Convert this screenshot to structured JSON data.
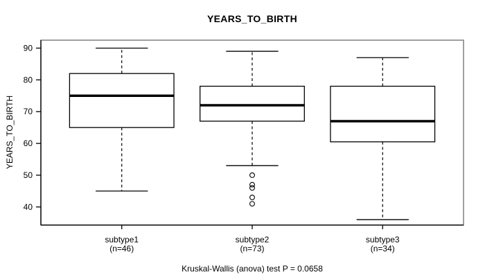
{
  "chart_data": {
    "type": "boxplot",
    "title": "YEARS_TO_BIRTH",
    "ylabel": "YEARS_TO_BIRTH",
    "footnote": "Kruskal-Wallis (anova) test P = 0.0658",
    "ylim": [
      34.3,
      92.5
    ],
    "yticks": [
      40,
      50,
      60,
      70,
      80,
      90
    ],
    "grid": false,
    "legend": "none",
    "groups": [
      {
        "label": "subtype1",
        "sublabel": "(n=46)",
        "n": 46,
        "whisker_low": 45,
        "q1": 65,
        "median": 75,
        "q3": 82,
        "whisker_high": 90,
        "outliers": []
      },
      {
        "label": "subtype2",
        "sublabel": "(n=73)",
        "n": 73,
        "whisker_low": 53,
        "q1": 67,
        "median": 72,
        "q3": 78,
        "whisker_high": 89,
        "outliers": [
          50,
          47,
          46,
          43,
          41
        ]
      },
      {
        "label": "subtype3",
        "sublabel": "(n=34)",
        "n": 34,
        "whisker_low": 36,
        "q1": 60.5,
        "median": 67,
        "q3": 78,
        "whisker_high": 87,
        "outliers": []
      }
    ],
    "colors": {
      "line": "#000000",
      "frame": "#878787",
      "box_fill": "#ffffff",
      "background": "#ffffff"
    }
  }
}
